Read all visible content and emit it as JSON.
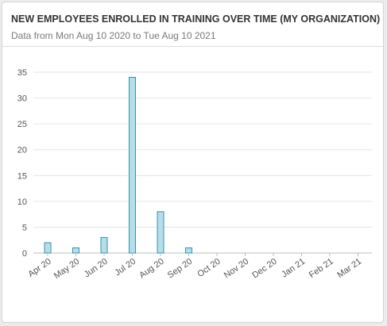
{
  "header": {
    "title": "NEW EMPLOYEES ENROLLED IN TRAINING OVER TIME (MY ORGANIZATION)",
    "subtitle": "Data from Mon Aug 10 2020 to Tue Aug 10 2021"
  },
  "colors": {
    "bar_fill": "#b9dde7",
    "bar_stroke": "#2f94b1",
    "grid": "#e6e6e6",
    "axis": "#bdbdbd"
  },
  "chart_data": {
    "type": "bar",
    "categories": [
      "Apr 20",
      "May 20",
      "Jun 20",
      "Jul 20",
      "Aug 20",
      "Sep 20",
      "Oct 20",
      "Nov 20",
      "Dec 20",
      "Jan 21",
      "Feb 21",
      "Mar 21"
    ],
    "values": [
      2,
      1,
      3,
      34,
      8,
      1,
      0,
      0,
      0,
      0,
      0,
      0
    ],
    "title": "",
    "xlabel": "",
    "ylabel": "",
    "ylim": [
      0,
      35
    ],
    "yticks": [
      0,
      5,
      10,
      15,
      20,
      25,
      30,
      35
    ],
    "grid": true,
    "legend": "none"
  }
}
